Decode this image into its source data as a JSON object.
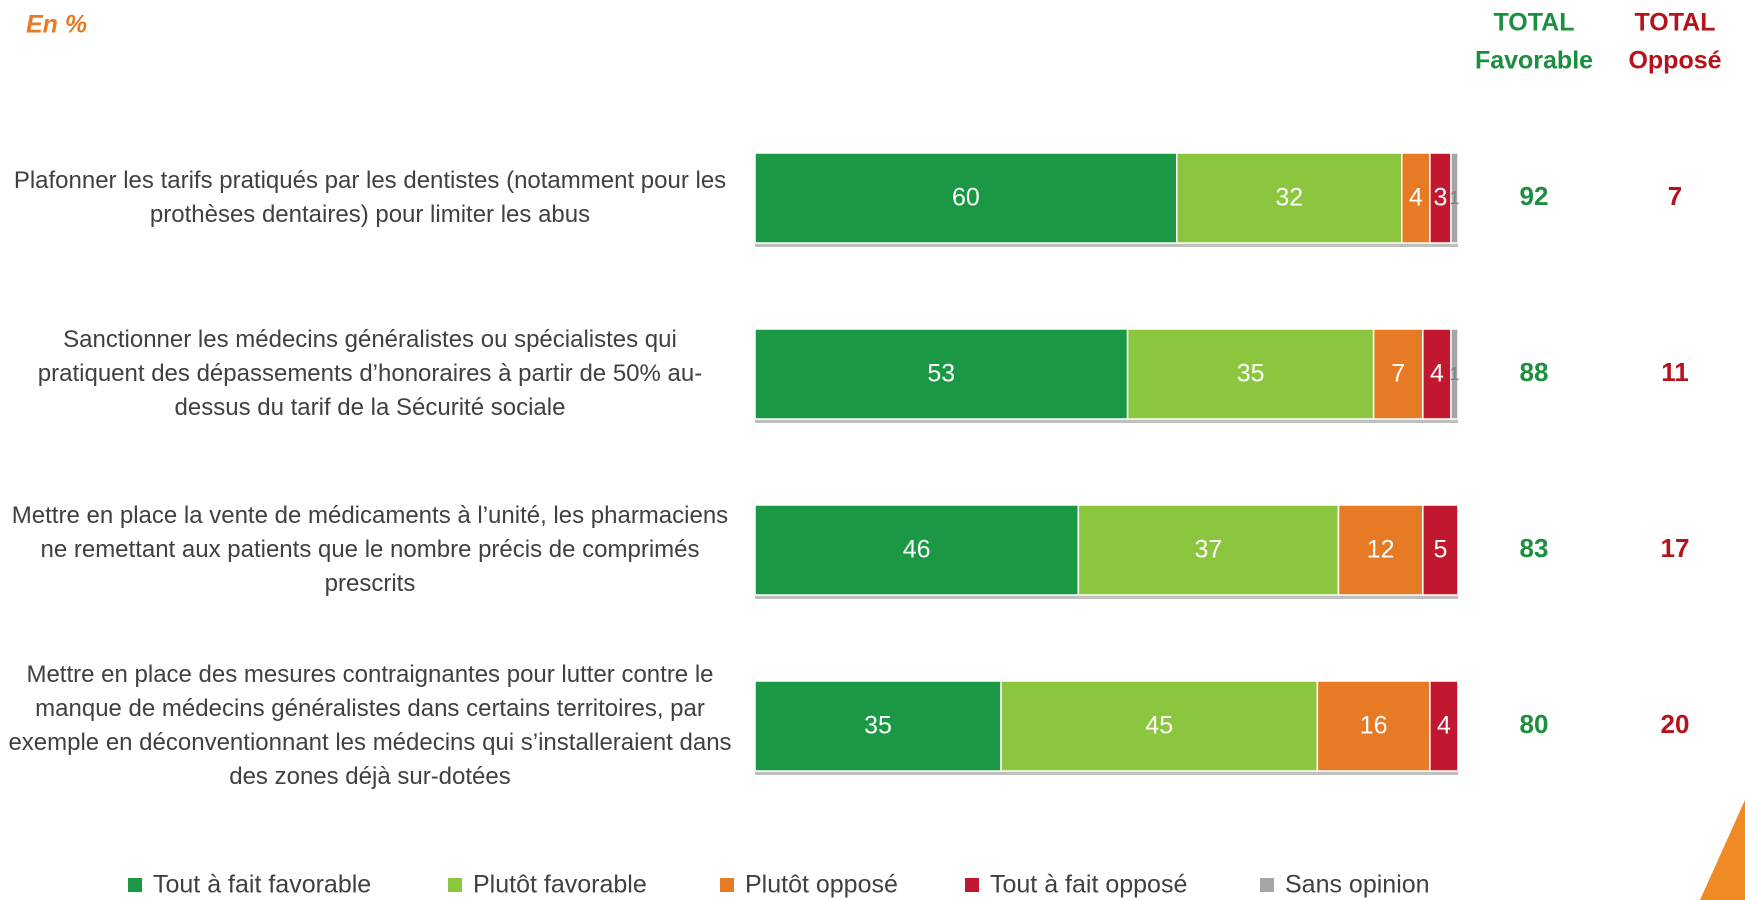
{
  "chart_data": {
    "type": "stacked-bar",
    "subtitle": "En %",
    "categories": [
      "Plafonner les tarifs pratiqués par les dentistes (notamment pour les prothèses dentaires) pour limiter les abus",
      "Sanctionner les médecins généralistes ou spécialistes qui pratiquent des dépassements d’honoraires à partir de 50% au-dessus du tarif de la Sécurité sociale",
      "Mettre en place la vente de médicaments à l’unité, les pharmaciens ne remettant aux patients que le nombre précis de comprimés prescrits",
      "Mettre en place des mesures contraignantes pour lutter contre le manque de médecins généralistes dans certains territoires, par exemple en déconventionnant les médecins qui s’installeraient dans des zones déjà sur-dotées"
    ],
    "series": [
      {
        "name": "Tout à fait favorable",
        "color": "#1b9845",
        "values": [
          60,
          53,
          46,
          35
        ]
      },
      {
        "name": "Plutôt favorable",
        "color": "#8cc63f",
        "values": [
          32,
          35,
          37,
          45
        ]
      },
      {
        "name": "Plutôt opposé",
        "color": "#e67a25",
        "values": [
          4,
          7,
          12,
          16
        ]
      },
      {
        "name": "Tout à fait opposé",
        "color": "#c2182f",
        "values": [
          3,
          4,
          5,
          4
        ]
      },
      {
        "name": "Sans opinion",
        "color": "#a6a6a6",
        "values": [
          1,
          1,
          null,
          null
        ]
      }
    ],
    "xlim": [
      0,
      100
    ],
    "totals": [
      {
        "header": [
          "TOTAL",
          "Favorable"
        ],
        "color": "#1b8f3e",
        "values": [
          92,
          88,
          83,
          80
        ]
      },
      {
        "header": [
          "TOTAL",
          "Opposé"
        ],
        "color": "#b5121b",
        "values": [
          7,
          11,
          17,
          20
        ]
      }
    ]
  }
}
